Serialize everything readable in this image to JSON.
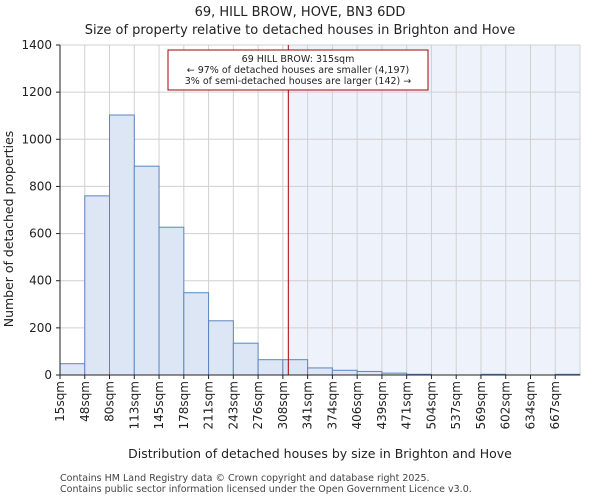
{
  "chart_data": {
    "type": "bar",
    "title": "69, HILL BROW, HOVE, BN3 6DD",
    "subtitle": "Size of property relative to detached houses in Brighton and Hove",
    "xlabel": "Distribution of detached houses by size in Brighton and Hove",
    "ylabel": "Number of detached properties",
    "ylim": [
      0,
      1400
    ],
    "yticks": [
      0,
      200,
      400,
      600,
      800,
      1000,
      1200,
      1400
    ],
    "categories": [
      "15sqm",
      "48sqm",
      "80sqm",
      "113sqm",
      "145sqm",
      "178sqm",
      "211sqm",
      "243sqm",
      "276sqm",
      "308sqm",
      "341sqm",
      "374sqm",
      "406sqm",
      "439sqm",
      "471sqm",
      "504sqm",
      "537sqm",
      "569sqm",
      "602sqm",
      "634sqm",
      "667sqm"
    ],
    "values": [
      48,
      760,
      1103,
      886,
      627,
      349,
      230,
      135,
      65,
      65,
      30,
      20,
      15,
      8,
      3,
      0,
      0,
      3,
      0,
      0,
      3
    ],
    "grid": true,
    "marker": {
      "value_sqm": 315,
      "position_bins": 9.22,
      "line1": "69 HILL BROW: 315sqm",
      "line2": "← 97% of detached houses are smaller (4,197)",
      "line3": "3% of semi-detached houses are larger (142) →"
    },
    "colors": {
      "bar_fill": "#dce6f4",
      "bar_edge": "#5b86c0",
      "highlight_fill": "#eef3fb",
      "marker_line": "#aa0000",
      "grid": "#d0d0d0",
      "axis": "#222222"
    }
  },
  "footer": {
    "line1": "Contains HM Land Registry data © Crown copyright and database right 2025.",
    "line2": "Contains public sector information licensed under the Open Government Licence v3.0."
  }
}
